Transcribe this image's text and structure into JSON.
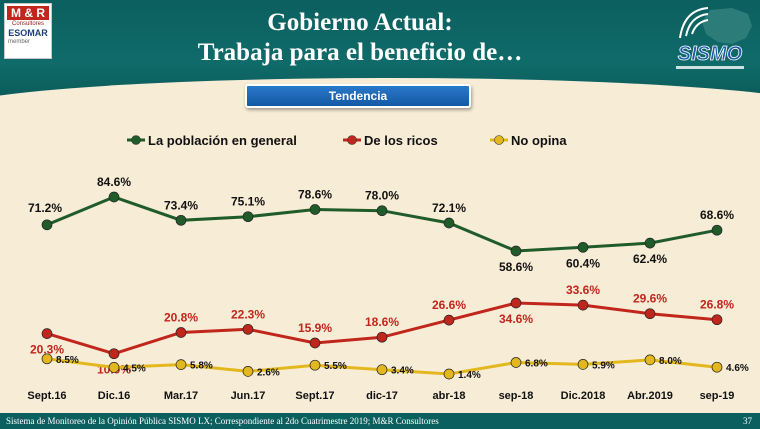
{
  "header": {
    "title_line1": "Gobierno Actual:",
    "title_line2": "Trabaja para el beneficio de…",
    "logo_left": {
      "brand": "M & R",
      "brand_sub": "Consultores",
      "assoc": "ESOMAR",
      "assoc_sub": "member"
    },
    "logo_right": {
      "brand": "SISMO"
    }
  },
  "subtitle_button": "Tendencia",
  "colors": {
    "general": "#1f5c2a",
    "ricos": "#c0261c",
    "no_opina": "#e2b81e",
    "header_bg": "#0c5f5f",
    "pill_bg": "#1a62b0",
    "background": "#f7ecd6"
  },
  "chart_data": {
    "type": "line",
    "categories": [
      "Sept.16",
      "Dic.16",
      "Mar.17",
      "Jun.17",
      "Sept.17",
      "dic-17",
      "abr-18",
      "sep-18",
      "Dic.2018",
      "Abr.2019",
      "sep-19"
    ],
    "series": [
      {
        "name": "La población en general",
        "color": "#1f5c2a",
        "values": [
          71.2,
          84.6,
          73.4,
          75.1,
          78.6,
          78.0,
          72.1,
          58.6,
          60.4,
          62.4,
          68.6
        ],
        "labels": [
          "71.2%",
          "84.6%",
          "73.4%",
          "75.1%",
          "78.6%",
          "78.0%",
          "72.1%",
          "58.6%",
          "60.4%",
          "62.4%",
          "68.6%"
        ]
      },
      {
        "name": "De los ricos",
        "color": "#c0261c",
        "values": [
          20.3,
          10.9,
          20.8,
          22.3,
          15.9,
          18.6,
          26.6,
          34.6,
          33.6,
          29.6,
          26.8
        ],
        "labels": [
          "20.3%",
          "10.9%",
          "20.8%",
          "22.3%",
          "15.9%",
          "18.6%",
          "26.6%",
          "34.6%",
          "33.6%",
          "29.6%",
          "26.8%"
        ]
      },
      {
        "name": "No opina",
        "color": "#e2b81e",
        "values": [
          8.5,
          4.5,
          5.8,
          2.6,
          5.5,
          3.4,
          1.4,
          6.8,
          5.9,
          8.0,
          4.6
        ],
        "labels": [
          "8.5%",
          "4.5%",
          "5.8%",
          "2.6%",
          "5.5%",
          "3.4%",
          "1.4%",
          "6.8%",
          "5.9%",
          "8.0%",
          "4.6%"
        ]
      }
    ],
    "legend": "top"
  },
  "footer": {
    "source": "Sistema de Monitoreo de la Opinión Pública SISMO LX; Correspondiente al 2do Cuatrimestre 2019; M&R Consultores",
    "page": "37"
  }
}
